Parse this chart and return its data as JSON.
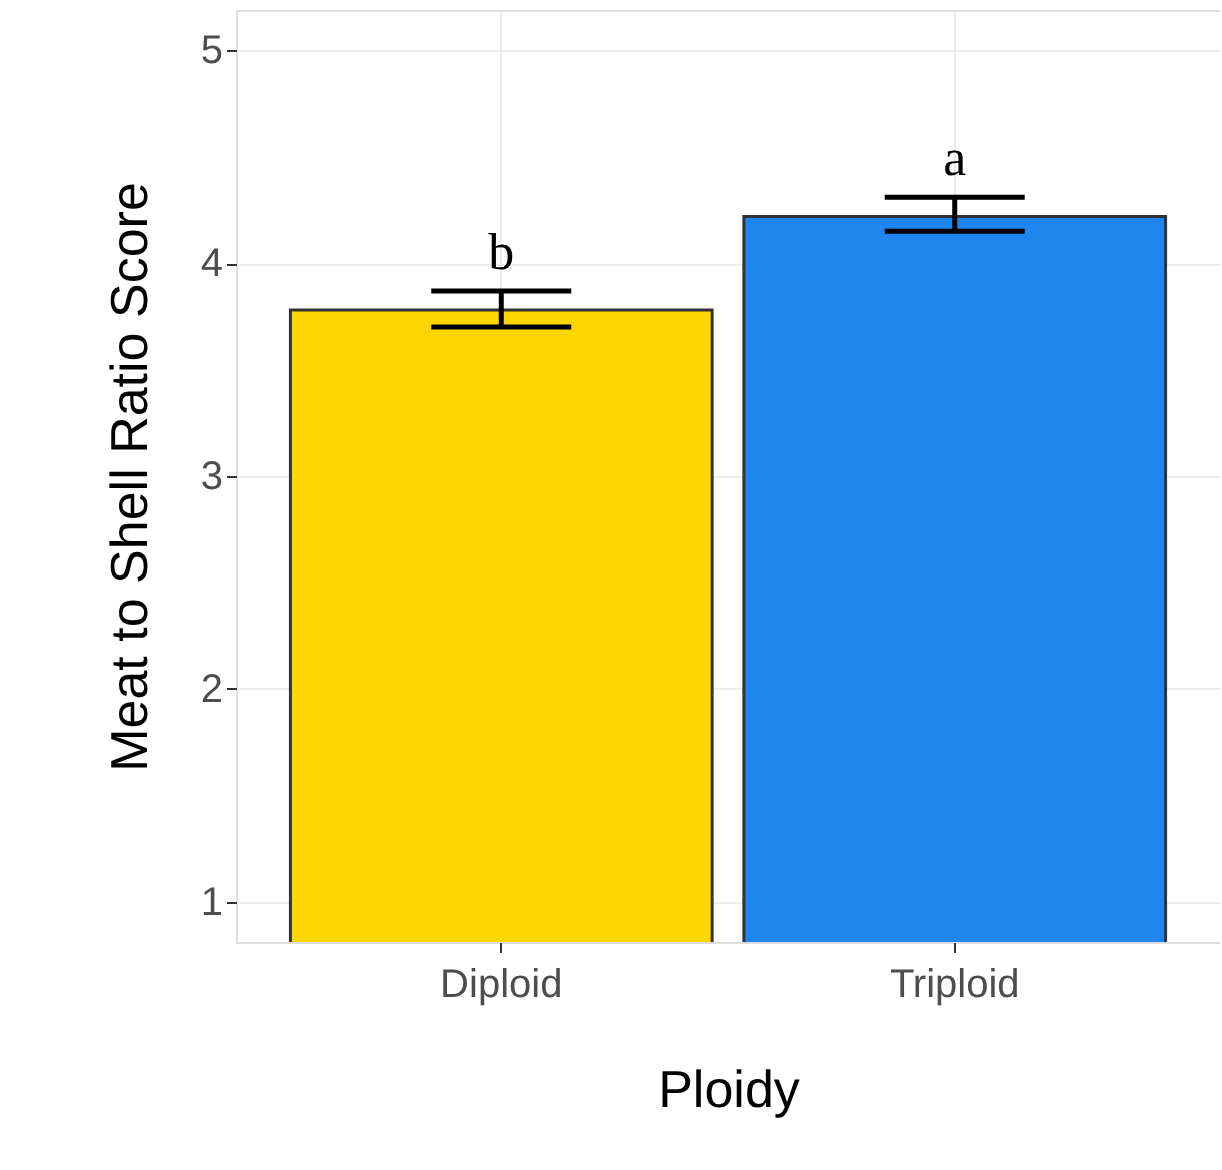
{
  "chart_data": {
    "type": "bar",
    "xlabel": "Ploidy",
    "ylabel": "Meat to Shell Ratio Score",
    "categories": [
      "Diploid",
      "Triploid"
    ],
    "values": [
      3.78,
      4.22
    ],
    "colors": [
      "#ffd700",
      "#1e86ee"
    ],
    "errors": [
      [
        3.7,
        3.87
      ],
      [
        4.15,
        4.31
      ]
    ],
    "ylim": [
      0.81,
      5.19
    ],
    "yticks": [
      1,
      2,
      3,
      4,
      5
    ],
    "grid": true,
    "annotations": [
      "b",
      "a"
    ]
  }
}
